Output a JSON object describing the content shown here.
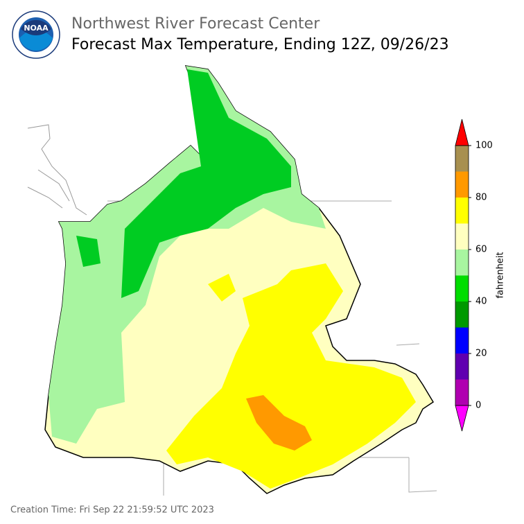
{
  "header": {
    "title": "Northwest River Forecast Center",
    "subtitle": "Forecast Max Temperature, Ending 12Z, 09/26/23"
  },
  "logo": {
    "text": "NOAA"
  },
  "colorbar": {
    "label": "fahrenheit",
    "ticks": [
      0,
      20,
      40,
      60,
      80,
      100
    ],
    "levels": [
      0,
      10,
      20,
      30,
      40,
      50,
      60,
      70,
      80,
      90,
      100
    ],
    "colors": [
      "#b000b0",
      "#6000b0",
      "#0000ff",
      "#009900",
      "#00dd00",
      "#a8f5a0",
      "#ffffc0",
      "#ffff00",
      "#ff9900",
      "#a89050"
    ],
    "under_color": "#ff00ff",
    "over_color": "#ff0000"
  },
  "footer": {
    "creation_time": "Creation Time: Fri Sep 22 21:59:52 UTC 2023"
  }
}
